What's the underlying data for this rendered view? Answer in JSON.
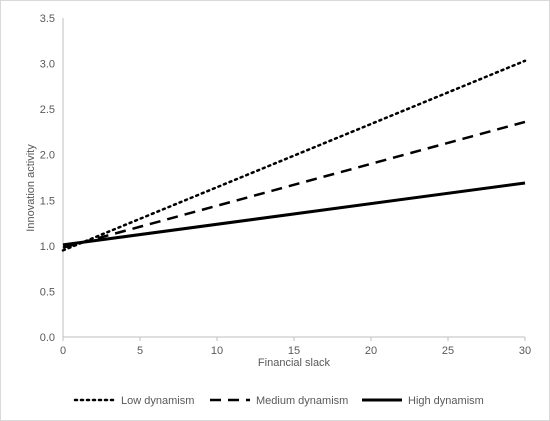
{
  "chart_data": {
    "type": "line",
    "xlabel": "Financial slack",
    "ylabel": "Innovation activity",
    "xlim": [
      0,
      30
    ],
    "ylim": [
      0,
      3.5
    ],
    "xticks": [
      "0",
      "5",
      "10",
      "15",
      "20",
      "25",
      "30"
    ],
    "yticks": [
      "0.0",
      "0.5",
      "1.0",
      "1.5",
      "2.0",
      "2.5",
      "3.0",
      "3.5"
    ],
    "grid": false,
    "legend_position": "bottom",
    "series": [
      {
        "name": "Low dynamism",
        "style": "dotted",
        "color": "#000000",
        "x": [
          0,
          30
        ],
        "y": [
          0.95,
          3.03
        ]
      },
      {
        "name": "Medium dynamism",
        "style": "dashed",
        "color": "#000000",
        "x": [
          0,
          30
        ],
        "y": [
          0.98,
          2.36
        ]
      },
      {
        "name": "High dynamism",
        "style": "solid",
        "color": "#000000",
        "x": [
          0,
          30
        ],
        "y": [
          1.01,
          1.69
        ]
      }
    ]
  }
}
